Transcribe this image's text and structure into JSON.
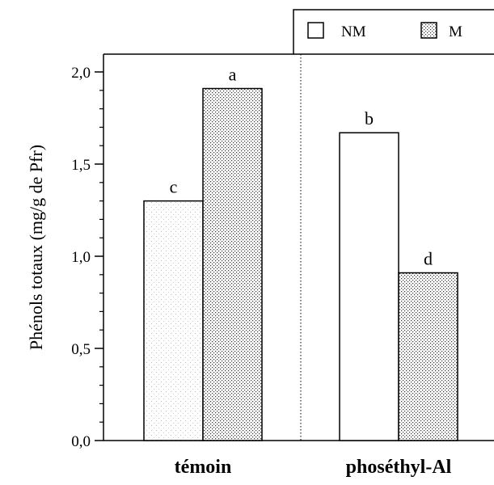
{
  "chart_data": {
    "type": "bar",
    "title": "",
    "xlabel": "",
    "ylabel": "Phénols totaux (mg/g de Pfr)",
    "ylim": [
      0,
      2.0
    ],
    "yticks": [
      {
        "value": 0.0,
        "label": "0,0"
      },
      {
        "value": 0.5,
        "label": "0,5"
      },
      {
        "value": 1.0,
        "label": "1,0"
      },
      {
        "value": 1.5,
        "label": "1,5"
      },
      {
        "value": 2.0,
        "label": "2,0"
      }
    ],
    "categories": [
      "témoin",
      "phoséthyl-Al"
    ],
    "series": [
      {
        "name": "NM",
        "pattern": "open",
        "values": [
          1.3,
          1.67
        ],
        "letters": [
          "c",
          "b"
        ]
      },
      {
        "name": "M",
        "pattern": "stippled",
        "values": [
          1.91,
          0.91
        ],
        "letters": [
          "a",
          "d"
        ]
      }
    ],
    "grid": false,
    "legend": "top-right",
    "separator": "dotted vertical line between groups"
  }
}
